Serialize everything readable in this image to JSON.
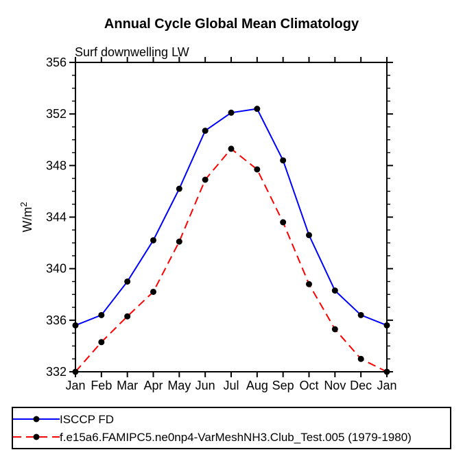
{
  "page": {
    "background": "#ffffff"
  },
  "chart_data": {
    "type": "line",
    "title": "Annual Cycle Global Mean Climatology",
    "subtitle": "Surf downwelling LW",
    "ylabel_base": "W/m",
    "ylabel_sup": "2",
    "categories": [
      "Jan",
      "Feb",
      "Mar",
      "Apr",
      "May",
      "Jun",
      "Jul",
      "Aug",
      "Sep",
      "Oct",
      "Nov",
      "Dec",
      "Jan"
    ],
    "ylim": [
      332,
      356
    ],
    "ytick_major_step": 4,
    "ytick_minor_step": 1,
    "yticks_major": [
      332,
      336,
      340,
      344,
      348,
      352,
      356
    ],
    "grid": false,
    "legend_position": "bottom-left-box",
    "axis_color": "#000000",
    "marker_color": "#000000",
    "series": [
      {
        "name": "ISCCP FD",
        "color": "#0000ff",
        "line_style": "solid",
        "marker": "filled-circle",
        "values": [
          335.6,
          336.4,
          339.0,
          342.2,
          346.2,
          350.7,
          352.1,
          352.4,
          348.4,
          342.6,
          338.3,
          336.4,
          335.6
        ]
      },
      {
        "name": "f.e15a6.FAMIPC5.ne0np4-VarMeshNH3.Club_Test.005 (1979-1980)",
        "color": "#ff0000",
        "line_style": "dashed",
        "marker": "filled-circle",
        "values": [
          332.0,
          334.3,
          336.3,
          338.2,
          342.1,
          346.9,
          349.3,
          347.7,
          343.6,
          338.8,
          335.3,
          333.0,
          332.0
        ]
      }
    ]
  }
}
